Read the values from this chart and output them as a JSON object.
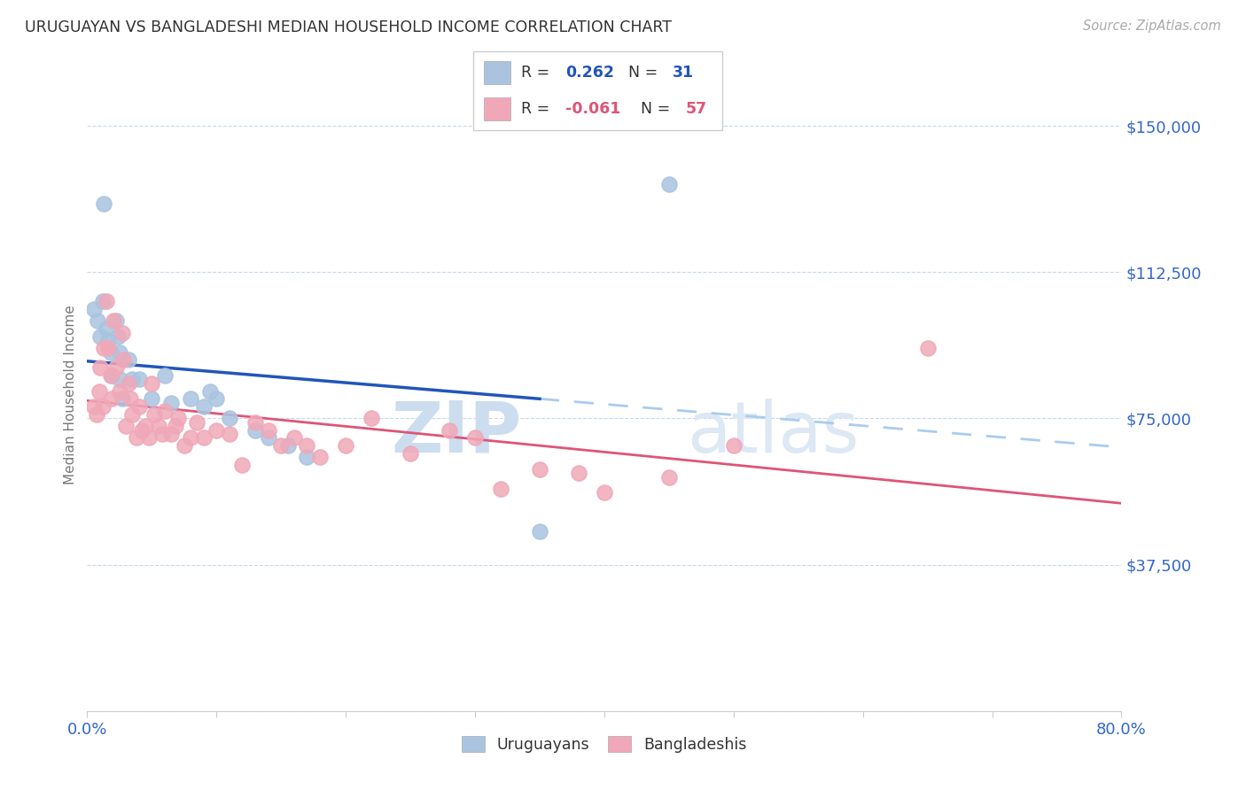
{
  "title": "URUGUAYAN VS BANGLADESHI MEDIAN HOUSEHOLD INCOME CORRELATION CHART",
  "source": "Source: ZipAtlas.com",
  "ylabel": "Median Household Income",
  "yticks": [
    0,
    37500,
    75000,
    112500,
    150000
  ],
  "ytick_labels": [
    "",
    "$37,500",
    "$75,000",
    "$112,500",
    "$150,000"
  ],
  "xlim": [
    0.0,
    0.8
  ],
  "ylim": [
    0,
    162000
  ],
  "watermark_zip": "ZIP",
  "watermark_atlas": "atlas",
  "legend_r_uruguayan": "0.262",
  "legend_n_uruguayan": "31",
  "legend_r_bangladeshi": "-0.061",
  "legend_n_bangladeshi": "57",
  "uruguayan_color": "#aac4e0",
  "bangladeshi_color": "#f0a8b8",
  "trend_uruguayan_color": "#2255bb",
  "trend_bangladeshi_color": "#dd5577",
  "trend_ext_color": "#aaccee",
  "uruguayan_x": [
    0.005,
    0.008,
    0.01,
    0.012,
    0.013,
    0.015,
    0.016,
    0.018,
    0.019,
    0.022,
    0.024,
    0.025,
    0.025,
    0.027,
    0.032,
    0.035,
    0.04,
    0.05,
    0.06,
    0.065,
    0.08,
    0.09,
    0.095,
    0.1,
    0.11,
    0.13,
    0.14,
    0.155,
    0.17,
    0.35,
    0.45
  ],
  "uruguayan_y": [
    103000,
    100000,
    96000,
    105000,
    130000,
    98000,
    95000,
    92000,
    86000,
    100000,
    96000,
    92000,
    85000,
    80000,
    90000,
    85000,
    85000,
    80000,
    86000,
    79000,
    80000,
    78000,
    82000,
    80000,
    75000,
    72000,
    70000,
    68000,
    65000,
    46000,
    135000
  ],
  "bangladeshi_x": [
    0.005,
    0.007,
    0.009,
    0.01,
    0.012,
    0.013,
    0.015,
    0.016,
    0.018,
    0.019,
    0.02,
    0.022,
    0.025,
    0.027,
    0.028,
    0.03,
    0.032,
    0.033,
    0.035,
    0.038,
    0.04,
    0.042,
    0.045,
    0.048,
    0.05,
    0.052,
    0.055,
    0.058,
    0.06,
    0.065,
    0.068,
    0.07,
    0.075,
    0.08,
    0.085,
    0.09,
    0.1,
    0.11,
    0.12,
    0.13,
    0.14,
    0.15,
    0.16,
    0.17,
    0.18,
    0.2,
    0.22,
    0.25,
    0.28,
    0.3,
    0.32,
    0.35,
    0.38,
    0.4,
    0.45,
    0.5,
    0.65
  ],
  "bangladeshi_y": [
    78000,
    76000,
    82000,
    88000,
    78000,
    93000,
    105000,
    93000,
    86000,
    80000,
    100000,
    88000,
    82000,
    97000,
    90000,
    73000,
    84000,
    80000,
    76000,
    70000,
    78000,
    72000,
    73000,
    70000,
    84000,
    76000,
    73000,
    71000,
    77000,
    71000,
    73000,
    75000,
    68000,
    70000,
    74000,
    70000,
    72000,
    71000,
    63000,
    74000,
    72000,
    68000,
    70000,
    68000,
    65000,
    68000,
    75000,
    66000,
    72000,
    70000,
    57000,
    62000,
    61000,
    56000,
    60000,
    68000,
    93000
  ],
  "background_color": "#ffffff",
  "grid_color": "#c8d8ec",
  "title_color": "#333333",
  "axis_label_color": "#3366cc",
  "ylabel_color": "#777777"
}
